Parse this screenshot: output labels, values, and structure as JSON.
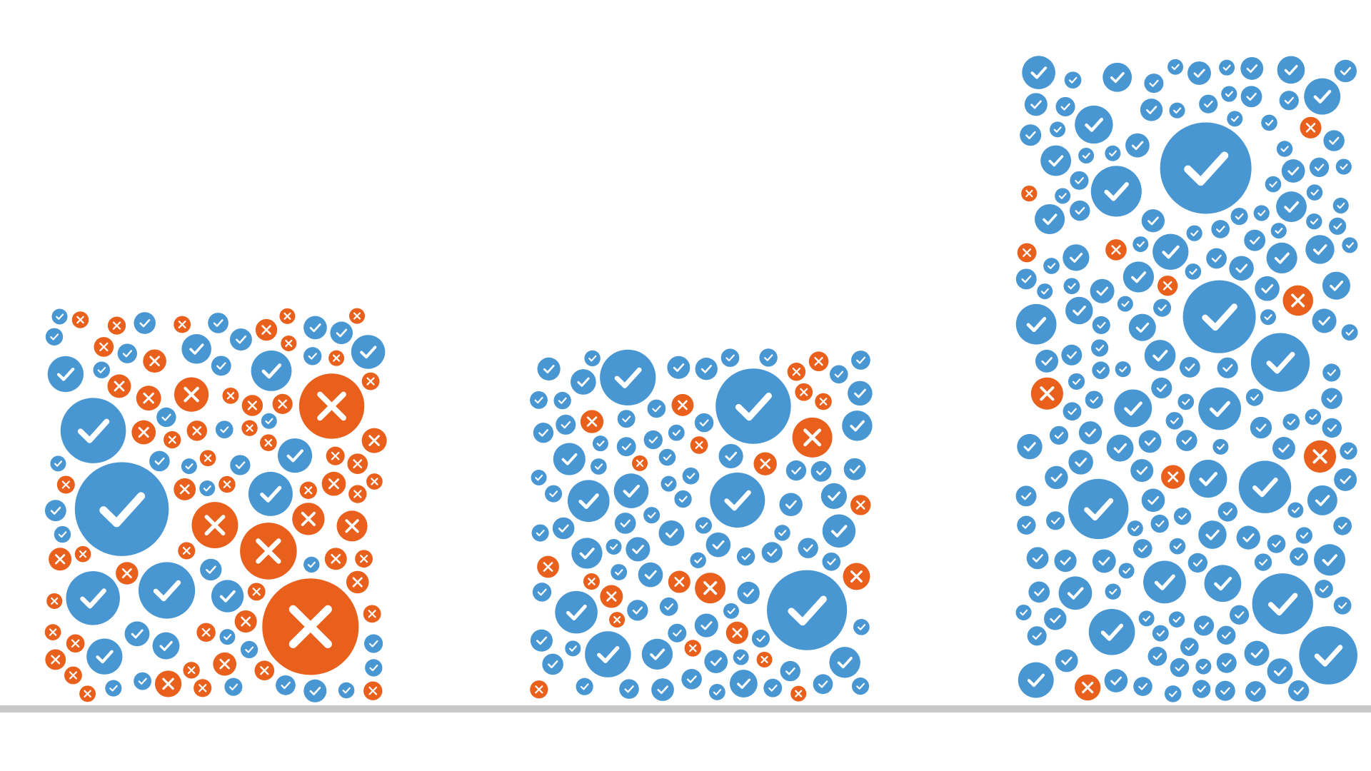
{
  "chart_data": {
    "type": "bar",
    "style": "circle-packed bars",
    "categories": [
      "",
      "",
      ""
    ],
    "series": [
      {
        "icon": "check-icon",
        "color": "#4896d2",
        "values": [
          30,
          50,
          110
        ]
      },
      {
        "icon": "x-icon",
        "color": "#e8601c",
        "values": [
          42,
          15,
          8
        ]
      }
    ],
    "grid": false,
    "legend": "none"
  },
  "colors": {
    "check": "#4896d2",
    "cross": "#e8601c",
    "baseline": "#c8c8c8",
    "background": "#ffffff"
  }
}
